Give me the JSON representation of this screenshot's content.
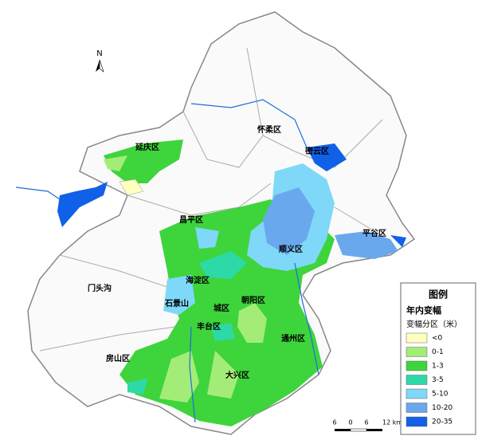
{
  "north": "N",
  "districts": [
    "延庆区",
    "怀柔区",
    "密云区",
    "昌平区",
    "顺义区",
    "平谷区",
    "海淀区",
    "门头沟",
    "石景山",
    "城区",
    "朝阳区",
    "丰台区",
    "通州区",
    "房山区",
    "大兴区"
  ],
  "legend": {
    "title": "图例",
    "subtitle": "年内变幅",
    "unit_label": "变幅分区（米）",
    "items": [
      {
        "label": "<0",
        "color": "#ffffc0"
      },
      {
        "label": "0-1",
        "color": "#a4ec78"
      },
      {
        "label": "1-3",
        "color": "#3ed43c"
      },
      {
        "label": "3-5",
        "color": "#2ed9a8"
      },
      {
        "label": "5-10",
        "color": "#7fd8f8"
      },
      {
        "label": "10-20",
        "color": "#6aa8ee"
      },
      {
        "label": "20-35",
        "color": "#1060e8"
      }
    ]
  },
  "scale": {
    "labels": [
      "6",
      "0",
      "6",
      "12 km"
    ]
  }
}
